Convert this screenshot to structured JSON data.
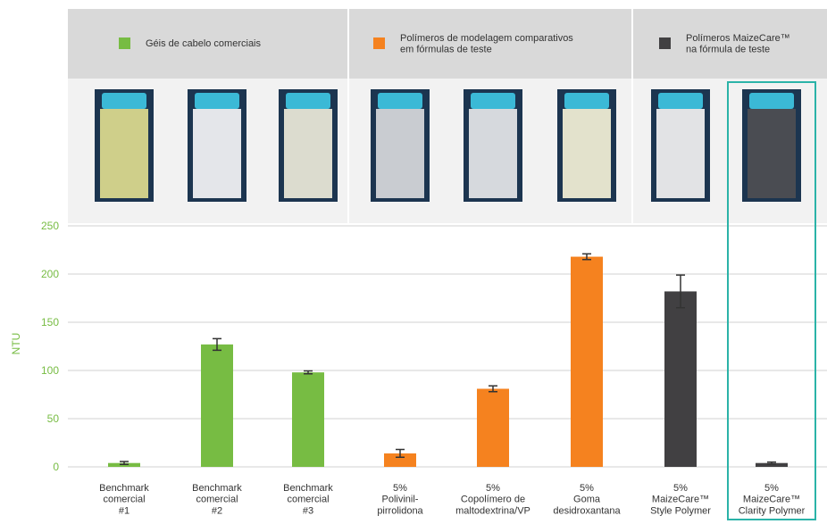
{
  "chart_data": {
    "type": "bar",
    "y_label": "NTU",
    "categories": [
      "Benchmark\ncomercial\n#1",
      "Benchmark\ncomercial\n#2",
      "Benchmark\ncomercial\n#3",
      "5%\nPolivinil-\npirrolidona",
      "5%\nCopolímero de\nmaltodextrina/VP",
      "5%\nGoma\ndesidroxantana",
      "5%\nMaizeCare™\nStyle Polymer",
      "5%\nMaizeCare™\nClarity Polymer"
    ],
    "series": [
      {
        "name": "Géis de cabelo comerciais",
        "color": "#77bc43",
        "values": [
          4,
          127,
          98,
          null,
          null,
          null,
          null,
          null
        ],
        "errors": [
          1.5,
          6,
          1.5,
          null,
          null,
          null,
          null,
          null
        ]
      },
      {
        "name": "Polímeros de modelagem comparativos\nem fórmulas de teste",
        "color": "#f5821f",
        "values": [
          null,
          null,
          null,
          14,
          81,
          218,
          null,
          null
        ],
        "errors": [
          null,
          null,
          null,
          4,
          3,
          3,
          null,
          null
        ]
      },
      {
        "name": "Polímeros MaizeCare™\nna fórmula de teste",
        "color": "#414042",
        "values": [
          null,
          null,
          null,
          null,
          null,
          null,
          182,
          4
        ],
        "errors": [
          null,
          null,
          null,
          null,
          null,
          null,
          17,
          1
        ]
      }
    ],
    "ylim": [
      0,
      250
    ],
    "yticks": [
      0,
      50,
      100,
      150,
      200,
      250
    ],
    "grid": true
  }
}
